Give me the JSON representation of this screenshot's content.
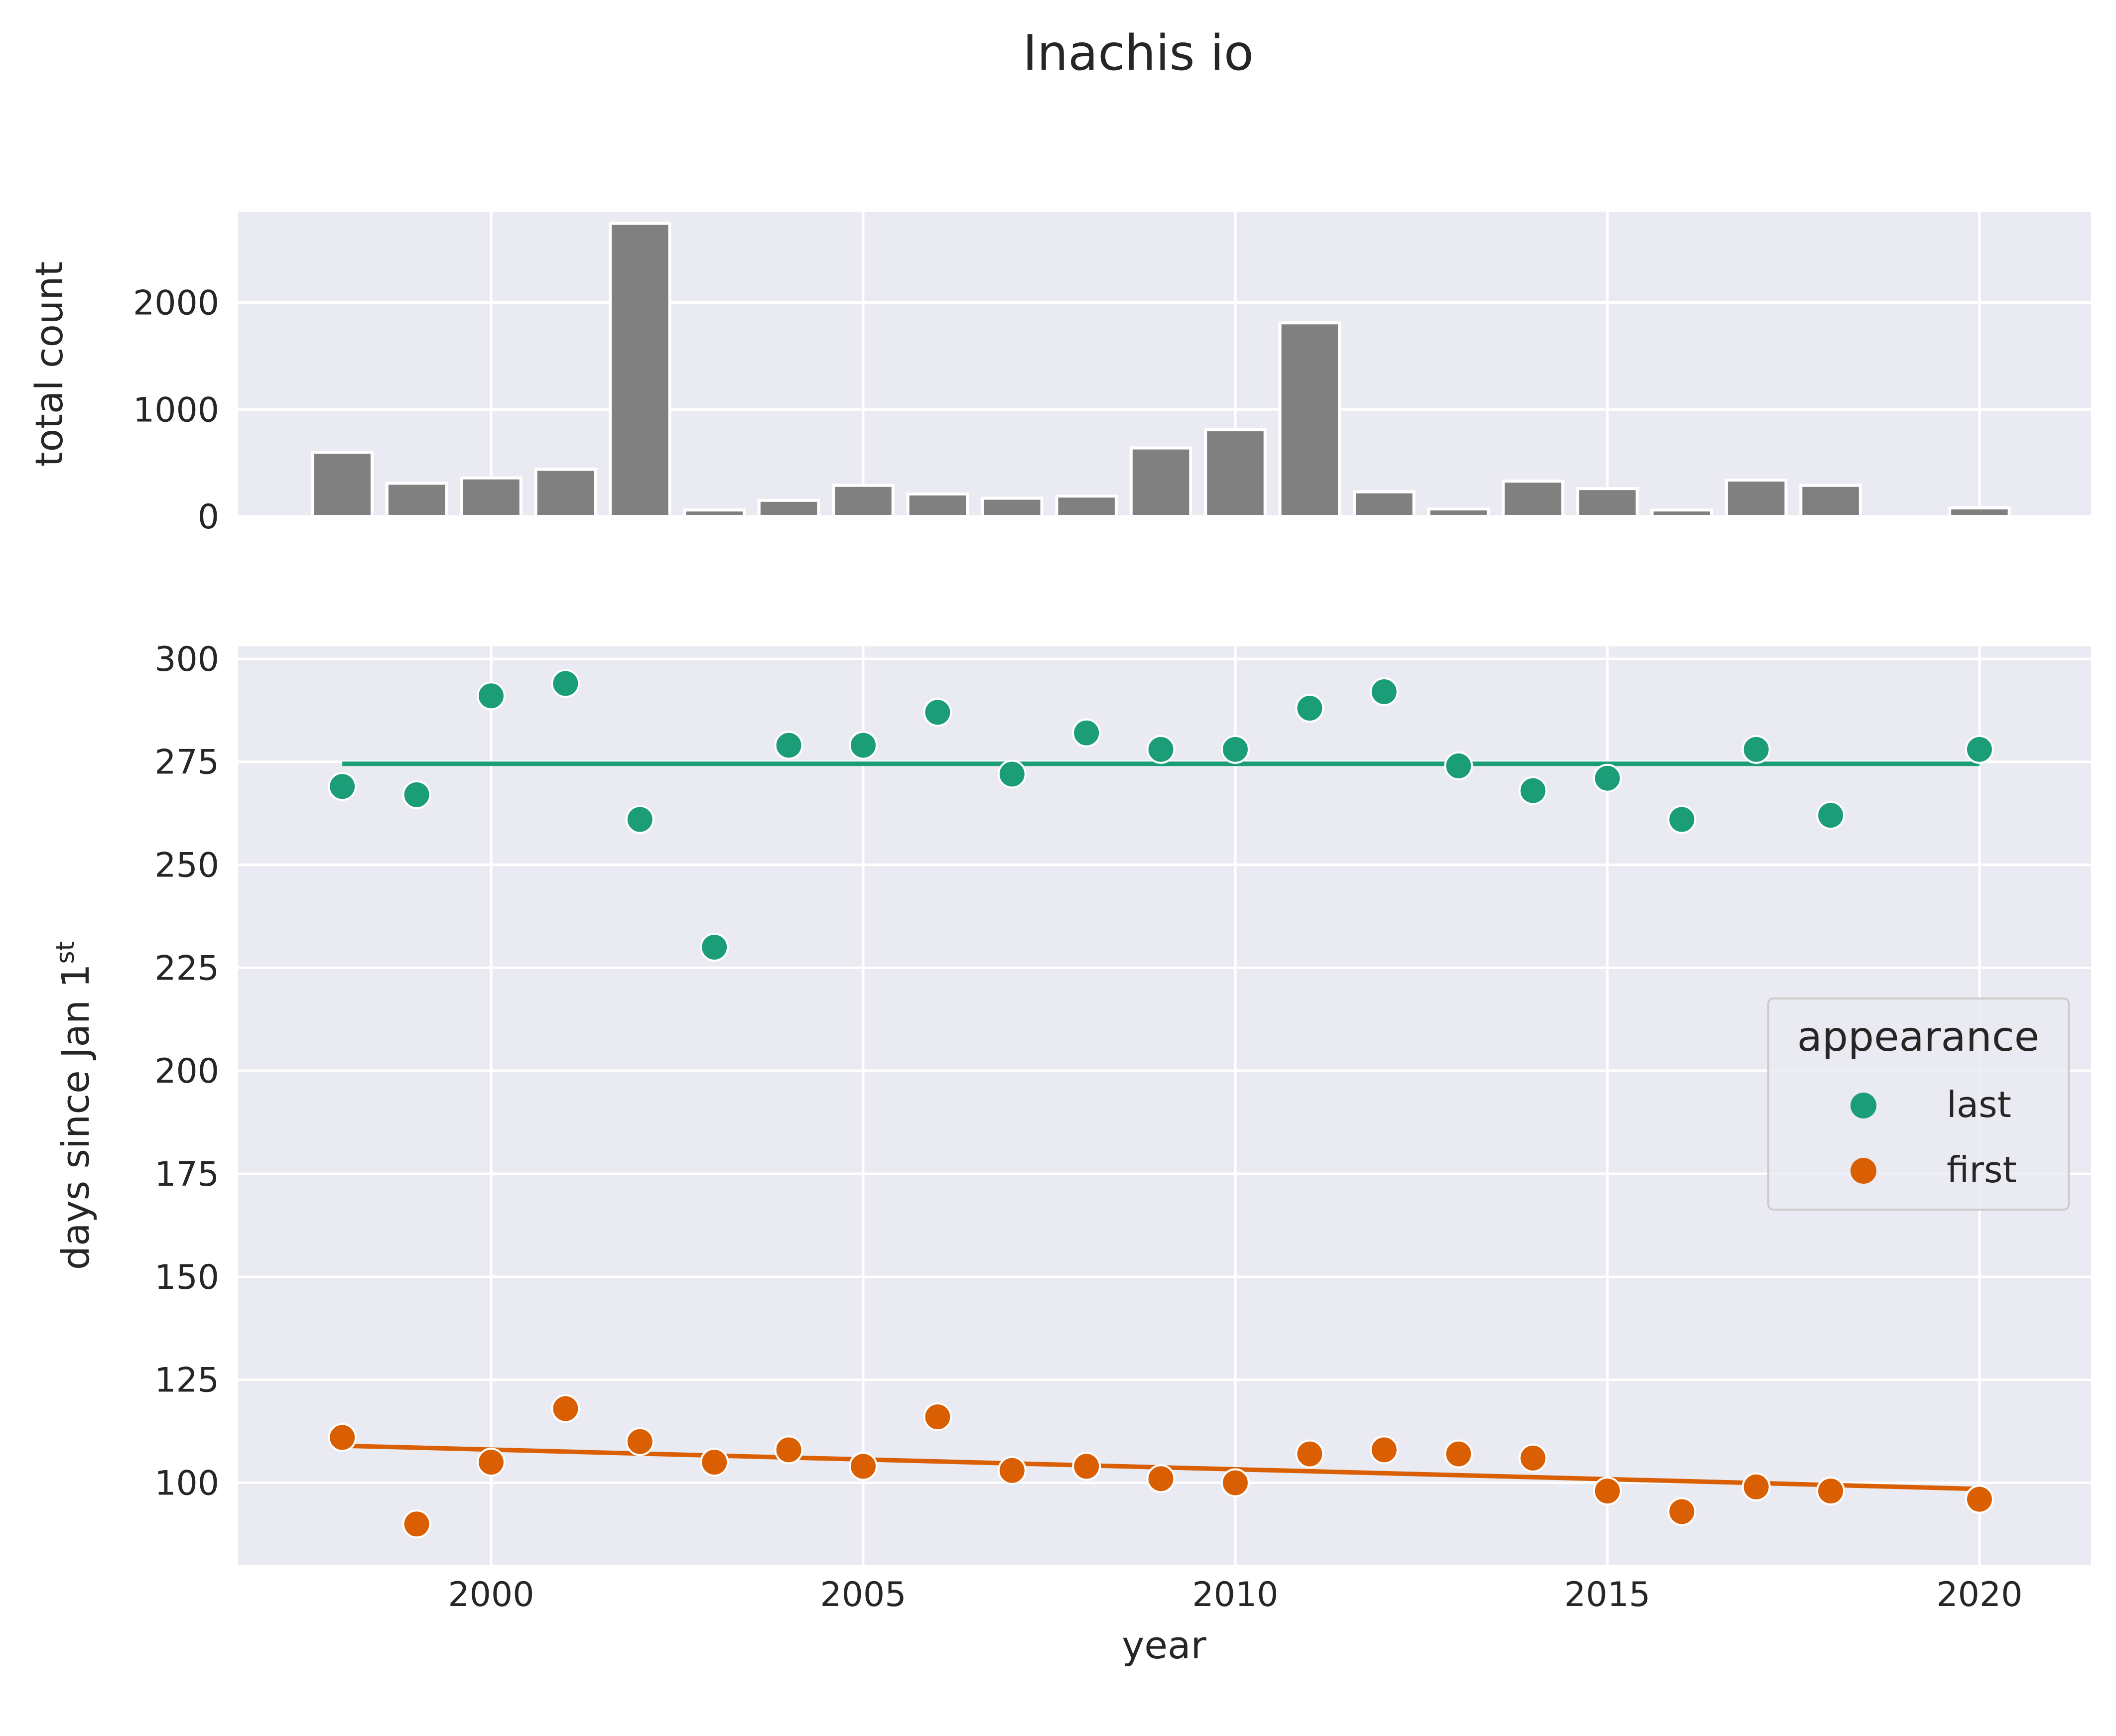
{
  "colors": {
    "background": "#ffffff",
    "axes_face": "#eaeaf2",
    "grid": "#ffffff",
    "bar": "#808080",
    "last": "#1b9e77",
    "first": "#d95f02",
    "text": "#262626"
  },
  "chart_data": [
    {
      "type": "bar",
      "title": "Inachis io",
      "xlabel": "",
      "ylabel": "total count",
      "xlim": [
        1996.6,
        2021.5
      ],
      "ylim": [
        0,
        2850
      ],
      "xticks": [
        2000,
        2005,
        2010,
        2015,
        2020
      ],
      "yticks": [
        0,
        1000,
        2000
      ],
      "ytick_labels": [
        "0",
        "1000",
        "2000"
      ],
      "grid": true,
      "x": [
        1998,
        1999,
        2000,
        2001,
        2002,
        2003,
        2004,
        2005,
        2006,
        2007,
        2008,
        2009,
        2010,
        2011,
        2012,
        2013,
        2014,
        2015,
        2016,
        2017,
        2018,
        2019,
        2020
      ],
      "values": [
        600,
        310,
        360,
        440,
        2740,
        60,
        150,
        290,
        210,
        170,
        190,
        640,
        810,
        1810,
        230,
        70,
        330,
        260,
        60,
        340,
        290,
        0,
        80
      ]
    },
    {
      "type": "scatter",
      "xlabel": "year",
      "ylabel_main": "days since Jan 1",
      "ylabel_sup": "st",
      "xlim": [
        1996.6,
        2021.5
      ],
      "ylim": [
        80,
        303
      ],
      "xticks": [
        2000,
        2005,
        2010,
        2015,
        2020
      ],
      "xtick_labels": [
        "2000",
        "2005",
        "2010",
        "2015",
        "2020"
      ],
      "yticks": [
        100,
        125,
        150,
        175,
        200,
        225,
        250,
        275,
        300
      ],
      "ytick_labels": [
        "100",
        "125",
        "150",
        "175",
        "200",
        "225",
        "250",
        "275",
        "300"
      ],
      "grid": true,
      "legend": {
        "title": "appearance",
        "placement": "center-right",
        "entries": [
          "last",
          "first"
        ]
      },
      "series": [
        {
          "name": "last",
          "color": "#1b9e77",
          "x": [
            1998,
            1999,
            2000,
            2001,
            2002,
            2003,
            2004,
            2005,
            2006,
            2007,
            2008,
            2009,
            2010,
            2011,
            2012,
            2013,
            2014,
            2015,
            2016,
            2017,
            2018,
            2020
          ],
          "y": [
            269,
            267,
            291,
            294,
            261,
            230,
            279,
            279,
            287,
            272,
            282,
            278,
            278,
            288,
            292,
            274,
            268,
            271,
            261,
            278,
            262,
            278
          ],
          "trend": {
            "x": [
              1998,
              2020
            ],
            "y": [
              274.5,
              274.5
            ]
          }
        },
        {
          "name": "first",
          "color": "#d95f02",
          "x": [
            1998,
            1999,
            2000,
            2001,
            2002,
            2003,
            2004,
            2005,
            2006,
            2007,
            2008,
            2009,
            2010,
            2011,
            2012,
            2013,
            2014,
            2015,
            2016,
            2017,
            2018,
            2020
          ],
          "y": [
            111,
            90,
            105,
            118,
            110,
            105,
            108,
            104,
            116,
            103,
            104,
            101,
            100,
            107,
            108,
            107,
            106,
            98,
            93,
            99,
            98,
            96
          ],
          "trend": {
            "x": [
              1998,
              2020
            ],
            "y": [
              109,
              98.5
            ]
          }
        }
      ]
    }
  ]
}
